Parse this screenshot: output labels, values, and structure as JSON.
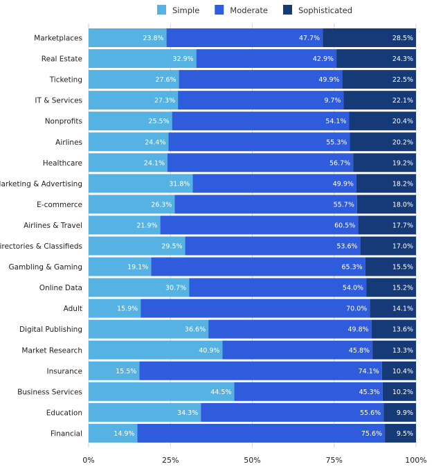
{
  "chart_data": {
    "type": "bar",
    "orientation": "horizontal",
    "stacked": true,
    "legend_position": "top",
    "grid": true,
    "xlim": [
      0,
      100
    ],
    "x_ticks": [
      "0%",
      "25%",
      "50%",
      "75%",
      "100%"
    ],
    "colors": {
      "Simple": "#55b2e2",
      "Moderate": "#2f5cdc",
      "Sophisticated": "#163a78"
    },
    "categories": [
      "Marketplaces",
      "Real Estate",
      "Ticketing",
      "IT & Services",
      "Nonprofits",
      "Airlines",
      "Healthcare",
      "Marketing & Advertising",
      "E-commerce",
      "Airlines & Travel",
      "Directories & Classifieds",
      "Gambling & Gaming",
      "Online Data",
      "Adult",
      "Digital Publishing",
      "Market Research",
      "Insurance",
      "Business Services",
      "Education",
      "Financial"
    ],
    "series": [
      {
        "name": "Simple",
        "values": [
          23.8,
          32.9,
          27.6,
          27.3,
          25.5,
          24.4,
          24.1,
          31.8,
          26.3,
          21.9,
          29.5,
          19.1,
          30.7,
          15.9,
          36.6,
          40.9,
          15.5,
          44.5,
          34.3,
          14.9
        ]
      },
      {
        "name": "Moderate",
        "values": [
          47.7,
          42.9,
          49.9,
          9.7,
          54.1,
          55.3,
          56.7,
          49.9,
          55.7,
          60.5,
          53.6,
          65.3,
          54.0,
          70.0,
          49.8,
          45.8,
          74.1,
          45.3,
          55.6,
          75.6
        ]
      },
      {
        "name": "Sophisticated",
        "values": [
          28.5,
          24.3,
          22.5,
          22.1,
          20.4,
          20.2,
          19.2,
          18.2,
          18.0,
          17.7,
          17.0,
          15.5,
          15.2,
          14.1,
          13.6,
          13.3,
          10.4,
          10.2,
          9.9,
          9.5
        ]
      }
    ]
  }
}
